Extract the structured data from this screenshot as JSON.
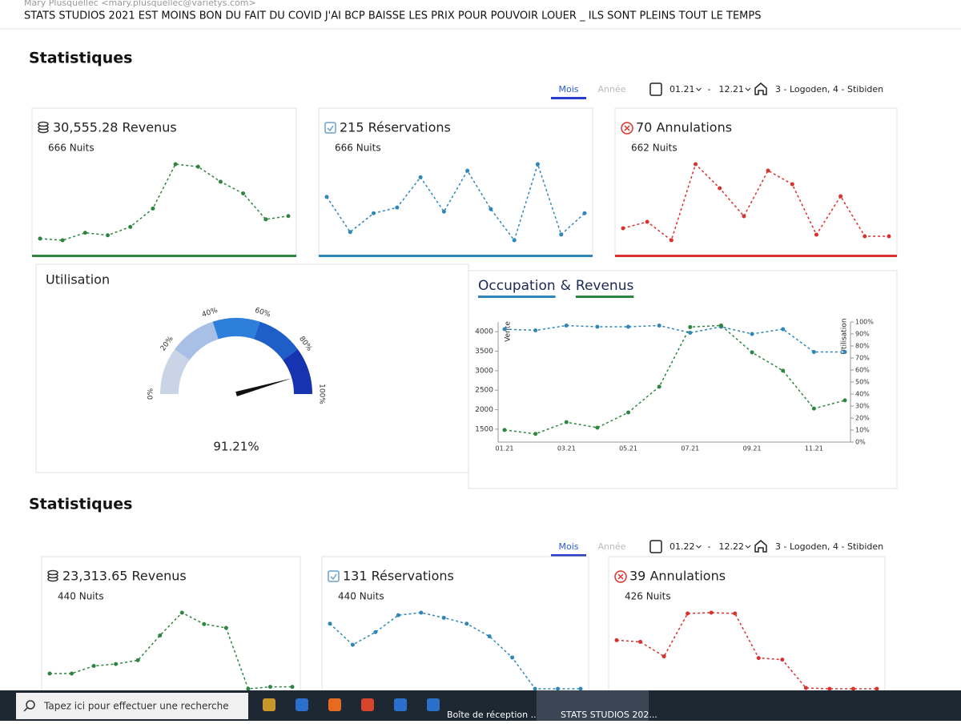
{
  "email": {
    "sender": "Mary Plusquellec <mary.plusquellec@varietys.com>",
    "subject": "STATS STUDIOS 2021 EST MOINS BON DU FAIT DU COVID J'AI BCP BAISSE LES PRIX POUR POUVOIR LOUER _ ILS SONT PLEINS TOUT LE TEMPS"
  },
  "sections": [
    {
      "title": "Statistiques",
      "tabs": [
        "Mois",
        "Année"
      ],
      "date_from": "01.21",
      "date_separator": "-",
      "date_to": "12.21",
      "properties": "3 - Logoden, 4 - Stibiden",
      "cards": [
        {
          "title": "30,555.28 Revenus",
          "subtitle": "666 Nuits",
          "color": "#2e8540",
          "values": [
            4,
            2,
            11,
            8,
            18,
            40,
            93,
            90,
            72,
            58,
            27,
            31
          ]
        },
        {
          "title": "215 Réservations",
          "subtitle": "666 Nuits",
          "color": "#2f86b8",
          "values": [
            60,
            17,
            40,
            47,
            84,
            42,
            92,
            45,
            7,
            100,
            14,
            40
          ]
        },
        {
          "title": "70 Annulations",
          "subtitle": "662 Nuits",
          "color": "#d8322f",
          "values": [
            25,
            33,
            10,
            105,
            75,
            40,
            97,
            80,
            17,
            65,
            15,
            15
          ]
        }
      ]
    },
    {
      "title": "Statistiques",
      "tabs": [
        "Mois",
        "Année"
      ],
      "date_from": "01.22",
      "date_separator": "-",
      "date_to": "12.22",
      "properties": "3 - Logoden, 4 - Stibiden",
      "cards": [
        {
          "title": "23,313.65 Revenus",
          "subtitle": "440 Nuits",
          "color": "#2e8540",
          "values": [
            10,
            10,
            14,
            15,
            17,
            30,
            42,
            36,
            34,
            2,
            3,
            3
          ]
        },
        {
          "title": "131 Réservations",
          "subtitle": "440 Nuits",
          "color": "#2f86b8",
          "values": [
            80,
            55,
            70,
            90,
            93,
            87,
            80,
            65,
            40,
            3,
            3,
            3
          ]
        },
        {
          "title": "39 Annulations",
          "subtitle": "426 Nuits",
          "color": "#d8322f",
          "values": [
            62,
            60,
            42,
            95,
            96,
            95,
            40,
            38,
            3,
            2,
            2,
            2
          ]
        }
      ]
    }
  ],
  "utilisation": {
    "title": "Utilisation",
    "value": 91.21,
    "value_label": "91.21%",
    "lim": [
      0,
      100
    ],
    "ticks": [
      {
        "value": 0,
        "label": "0%"
      },
      {
        "value": 20,
        "label": "20%"
      },
      {
        "value": 40,
        "label": "40%"
      },
      {
        "value": 60,
        "label": "60%"
      },
      {
        "value": 80,
        "label": "80%"
      },
      {
        "value": 100,
        "label": "100%"
      }
    ],
    "band_colors": [
      "#c9d4e6",
      "#a8bfe6",
      "#2e7fd9",
      "#1f5ec9",
      "#1633b0"
    ]
  },
  "occupation": {
    "type": "line",
    "legend_separator": "&",
    "ylabel": "Vente",
    "y2label": "Utilisation",
    "categories": [
      "01.21",
      null,
      "03.21",
      null,
      "05.21",
      null,
      "07.21",
      null,
      "09.21",
      null,
      "11.21",
      null
    ],
    "ylim": [
      1170,
      4250
    ],
    "yticks": [
      1500,
      2000,
      2500,
      3000,
      3500,
      4000
    ],
    "y2lim": [
      0,
      100
    ],
    "y2ticks": [
      {
        "value": 0,
        "label": "0%"
      },
      {
        "value": 10,
        "label": "10%"
      },
      {
        "value": 20,
        "label": "20%"
      },
      {
        "value": 30,
        "label": "30%"
      },
      {
        "value": 40,
        "label": "40%"
      },
      {
        "value": 50,
        "label": "50%"
      },
      {
        "value": 60,
        "label": "60%"
      },
      {
        "value": 70,
        "label": "70%"
      },
      {
        "value": 80,
        "label": "80%"
      },
      {
        "value": 90,
        "label": "90%"
      },
      {
        "value": 100,
        "label": "100%"
      }
    ],
    "series": [
      {
        "name": "Occupation",
        "color": "#2f86b8",
        "axis": "y2",
        "values": [
          94,
          93,
          97,
          96,
          96,
          97,
          91,
          96,
          90,
          94,
          75,
          75
        ]
      },
      {
        "name": "Revenus",
        "color": "#2e8540",
        "values": [
          1480,
          1380,
          1680,
          1540,
          1930,
          2590,
          4120,
          4160,
          3470,
          3000,
          2030,
          2240
        ]
      }
    ]
  },
  "taskbar": {
    "search": "Tapez ici pour effectuer une recherche",
    "items": [
      "Boîte de réception ...",
      "STATS STUDIOS 202..."
    ]
  }
}
